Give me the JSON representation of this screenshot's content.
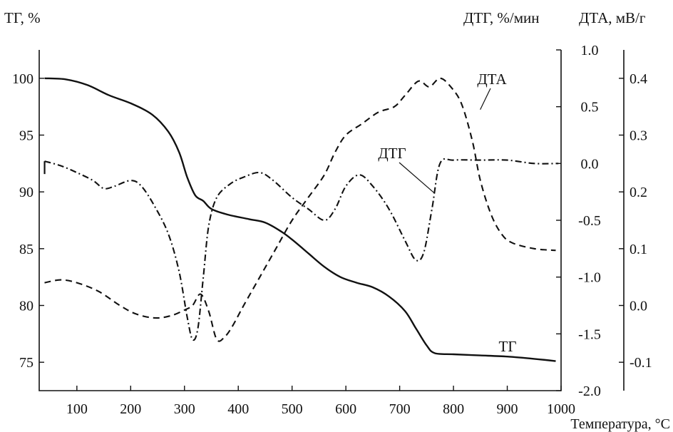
{
  "chart_data": {
    "type": "line",
    "title": "",
    "x_axis": {
      "label": "Температура, °С",
      "range": [
        30,
        1000
      ],
      "ticks": [
        100,
        200,
        300,
        400,
        500,
        600,
        700,
        800,
        900,
        1000
      ],
      "tick_labels": [
        "100",
        "200",
        "300",
        "400",
        "500",
        "600",
        "700",
        "800",
        "900",
        "1000"
      ]
    },
    "y_axes": {
      "tg": {
        "label": "ТГ, %",
        "side": "left",
        "range": [
          72.5,
          102.5
        ],
        "ticks": [
          75,
          80,
          85,
          90,
          95,
          100
        ],
        "tick_labels": [
          "75",
          "80",
          "85",
          "90",
          "95",
          "100"
        ]
      },
      "dtg": {
        "label": "ДТГ, %/мин",
        "side": "right-inner",
        "range": [
          -2.0,
          1.0
        ],
        "ticks": [
          1.0,
          0.5,
          0.0,
          -0.5,
          -1.0,
          -1.5,
          -2.0
        ],
        "tick_labels": [
          "1.0",
          "0.5",
          "0.0",
          "-0.5",
          "-1.0",
          "-1.5",
          "-2.0"
        ]
      },
      "dta": {
        "label": "ДТА, мВ/г",
        "side": "right-outer",
        "range": [
          -0.15,
          0.45
        ],
        "ticks": [
          0.4,
          0.3,
          0.2,
          0.1,
          0.0,
          -0.1
        ],
        "tick_labels": [
          "0.4",
          "0.3",
          "0.2",
          "0.1",
          "0.0",
          "-0.1"
        ]
      }
    },
    "series": [
      {
        "name": "ТГ",
        "axis": "tg",
        "style": "solid",
        "points": [
          [
            40,
            100
          ],
          [
            80,
            99.9
          ],
          [
            120,
            99.4
          ],
          [
            160,
            98.5
          ],
          [
            200,
            97.8
          ],
          [
            240,
            96.8
          ],
          [
            270,
            95.3
          ],
          [
            290,
            93.5
          ],
          [
            305,
            91.3
          ],
          [
            320,
            89.7
          ],
          [
            335,
            89.2
          ],
          [
            350,
            88.5
          ],
          [
            380,
            88.0
          ],
          [
            420,
            87.6
          ],
          [
            450,
            87.3
          ],
          [
            480,
            86.5
          ],
          [
            500,
            85.8
          ],
          [
            530,
            84.6
          ],
          [
            560,
            83.4
          ],
          [
            590,
            82.5
          ],
          [
            620,
            82.0
          ],
          [
            650,
            81.6
          ],
          [
            680,
            80.8
          ],
          [
            710,
            79.5
          ],
          [
            730,
            78.0
          ],
          [
            750,
            76.5
          ],
          [
            765,
            75.8
          ],
          [
            800,
            75.7
          ],
          [
            850,
            75.6
          ],
          [
            900,
            75.5
          ],
          [
            950,
            75.3
          ],
          [
            990,
            75.1
          ]
        ]
      },
      {
        "name": "ДТГ",
        "axis": "dtg",
        "style": "dash-dot",
        "points": [
          [
            40,
            0.02
          ],
          [
            70,
            -0.02
          ],
          [
            100,
            -0.08
          ],
          [
            130,
            -0.15
          ],
          [
            150,
            -0.22
          ],
          [
            170,
            -0.2
          ],
          [
            200,
            -0.15
          ],
          [
            220,
            -0.2
          ],
          [
            245,
            -0.38
          ],
          [
            270,
            -0.62
          ],
          [
            290,
            -0.95
          ],
          [
            305,
            -1.35
          ],
          [
            315,
            -1.55
          ],
          [
            325,
            -1.45
          ],
          [
            335,
            -1.0
          ],
          [
            345,
            -0.55
          ],
          [
            360,
            -0.3
          ],
          [
            385,
            -0.18
          ],
          [
            410,
            -0.12
          ],
          [
            440,
            -0.08
          ],
          [
            465,
            -0.15
          ],
          [
            500,
            -0.3
          ],
          [
            530,
            -0.4
          ],
          [
            560,
            -0.5
          ],
          [
            580,
            -0.4
          ],
          [
            600,
            -0.2
          ],
          [
            625,
            -0.1
          ],
          [
            650,
            -0.2
          ],
          [
            680,
            -0.4
          ],
          [
            710,
            -0.68
          ],
          [
            730,
            -0.85
          ],
          [
            745,
            -0.78
          ],
          [
            760,
            -0.4
          ],
          [
            775,
            0.0
          ],
          [
            800,
            0.03
          ],
          [
            850,
            0.03
          ],
          [
            900,
            0.03
          ],
          [
            950,
            0.0
          ],
          [
            995,
            0.0
          ]
        ]
      },
      {
        "name": "ДТА",
        "axis": "dta",
        "style": "dashed",
        "points": [
          [
            40,
            0.04
          ],
          [
            70,
            0.045
          ],
          [
            100,
            0.04
          ],
          [
            140,
            0.025
          ],
          [
            180,
            0.0
          ],
          [
            210,
            -0.015
          ],
          [
            245,
            -0.022
          ],
          [
            275,
            -0.018
          ],
          [
            300,
            -0.008
          ],
          [
            315,
            0.0
          ],
          [
            330,
            0.02
          ],
          [
            345,
            -0.01
          ],
          [
            360,
            -0.06
          ],
          [
            375,
            -0.055
          ],
          [
            390,
            -0.035
          ],
          [
            410,
            0.0
          ],
          [
            440,
            0.05
          ],
          [
            470,
            0.1
          ],
          [
            500,
            0.15
          ],
          [
            530,
            0.19
          ],
          [
            560,
            0.23
          ],
          [
            580,
            0.27
          ],
          [
            600,
            0.3
          ],
          [
            630,
            0.32
          ],
          [
            660,
            0.34
          ],
          [
            690,
            0.35
          ],
          [
            710,
            0.37
          ],
          [
            735,
            0.395
          ],
          [
            755,
            0.385
          ],
          [
            775,
            0.4
          ],
          [
            795,
            0.385
          ],
          [
            815,
            0.355
          ],
          [
            835,
            0.29
          ],
          [
            850,
            0.22
          ],
          [
            870,
            0.16
          ],
          [
            890,
            0.125
          ],
          [
            910,
            0.11
          ],
          [
            950,
            0.1
          ],
          [
            990,
            0.097
          ]
        ]
      }
    ],
    "annotations": [
      {
        "text": "ДТА",
        "points_to": [
          810,
          0.37
        ]
      },
      {
        "text": "ДТГ",
        "points_to": [
          765,
          -0.2
        ]
      },
      {
        "text": "ТГ",
        "points_to": null
      }
    ],
    "grid": false,
    "legend": "none"
  }
}
